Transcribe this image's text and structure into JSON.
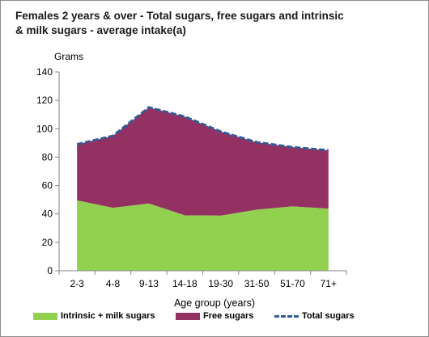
{
  "chart_data": {
    "type": "area",
    "title": "Females 2 years  & over - Total sugars, free sugars and intrinsic\n& milk sugars  - average intake(a)",
    "xlabel": "Age group (years)",
    "ylabel": "Grams",
    "ylim": [
      0,
      140
    ],
    "yticks": [
      "0",
      "20",
      "40",
      "60",
      "80",
      "100",
      "120",
      "140"
    ],
    "categories": [
      "2-3",
      "4-8",
      "9-13",
      "14-18",
      "19-30",
      "31-50",
      "51-70",
      "71+"
    ],
    "series": [
      {
        "name": "Intrinsic + milk sugars",
        "kind": "area",
        "color": "#92d050",
        "values": [
          49.5,
          44.3,
          47.3,
          39.0,
          38.8,
          43.0,
          45.3,
          43.7
        ]
      },
      {
        "name": "Free sugars",
        "kind": "stacked-area",
        "color": "#943163",
        "values": [
          39.5,
          50.7,
          67.7,
          69.5,
          59.2,
          47.5,
          41.7,
          41.1
        ]
      },
      {
        "name": "Total sugars",
        "kind": "dashed-line",
        "color": "#2e5c96",
        "values": [
          89.0,
          95.0,
          115.0,
          108.5,
          98.0,
          90.5,
          87.0,
          84.8
        ]
      }
    ],
    "grid": false,
    "legend_position": "bottom"
  }
}
